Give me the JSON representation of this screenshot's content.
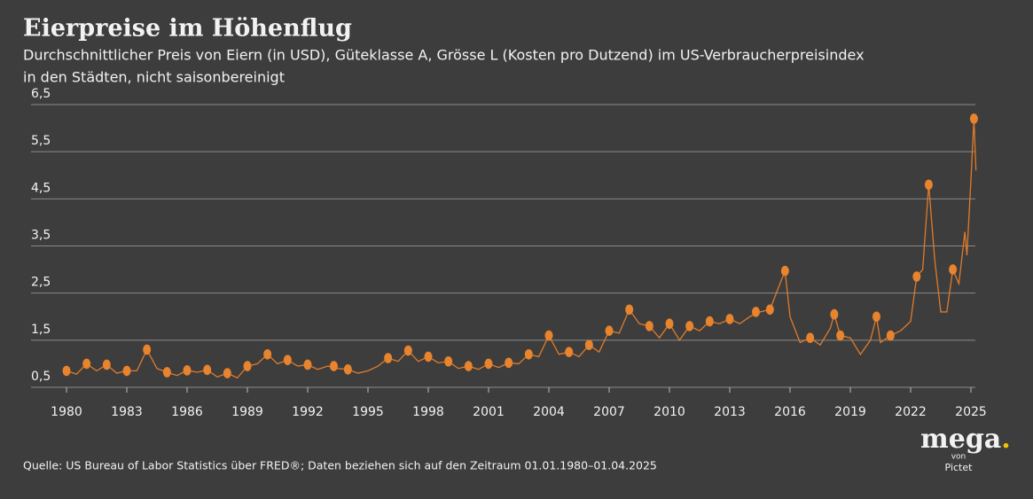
{
  "chart_data": {
    "type": "line",
    "title": "Eierpreise im Höhenflug",
    "subtitle": [
      "Durchschnittlicher Preis von Eiern (in USD), Güteklasse A, Grösse L (Kosten pro Dutzend) im US-Verbraucherpreisindex",
      "in den Städten, nicht saisonbereinigt"
    ],
    "source": "Quelle: US Bureau of Labor Statistics über FRED®; Daten beziehen sich auf den Zeitraum 01.01.1980–01.04.2025",
    "brand": {
      "name": "mega",
      "dot": ".",
      "by": "von",
      "company": "Pictet"
    },
    "xlim": [
      1980,
      2025
    ],
    "xticks": [
      1980,
      1983,
      1986,
      1989,
      1992,
      1995,
      1998,
      2001,
      2004,
      2007,
      2010,
      2013,
      2016,
      2019,
      2022,
      2025
    ],
    "ylim": [
      0.5,
      6.5
    ],
    "yticks": [
      {
        "value": 0.5,
        "label": "0,5"
      },
      {
        "value": 1.5,
        "label": "1,5"
      },
      {
        "value": 2.5,
        "label": "2,5"
      },
      {
        "value": 3.5,
        "label": "3,5"
      },
      {
        "value": 4.5,
        "label": "4,5"
      },
      {
        "value": 5.5,
        "label": "5,5"
      },
      {
        "value": 6.5,
        "label": "6,5"
      }
    ],
    "grid": true,
    "series": [
      {
        "color": "#e07b2a",
        "marker": "none",
        "x": [
          1980,
          1980.5,
          1981,
          1981.5,
          1982,
          1982.5,
          1983,
          1983.5,
          1984,
          1984.5,
          1985,
          1985.5,
          1986,
          1986.5,
          1987,
          1987.5,
          1988,
          1988.5,
          1989,
          1989.5,
          1990,
          1990.5,
          1991,
          1991.5,
          1992,
          1992.5,
          1993,
          1993.5,
          1994,
          1994.5,
          1995,
          1995.5,
          1996,
          1996.5,
          1997,
          1997.5,
          1998,
          1998.5,
          1999,
          1999.5,
          2000,
          2000.5,
          2001,
          2001.5,
          2002,
          2002.5,
          2003,
          2003.5,
          2004,
          2004.5,
          2005,
          2005.5,
          2006,
          2006.5,
          2007,
          2007.5,
          2008,
          2008.5,
          2009,
          2009.5,
          2010,
          2010.5,
          2011,
          2011.5,
          2012,
          2012.5,
          2013,
          2013.5,
          2014,
          2014.5,
          2015,
          2015.5,
          2015.75,
          2016,
          2016.5,
          2017,
          2017.5,
          2018,
          2018.2,
          2018.5,
          2019,
          2019.5,
          2020,
          2020.3,
          2020.5,
          2021,
          2021.5,
          2022,
          2022.3,
          2022.6,
          2022.9,
          2023.2,
          2023.5,
          2023.8,
          2024.1,
          2024.4,
          2024.7,
          2024.8,
          2025,
          2025.15,
          2025.25
        ],
        "values": [
          0.85,
          0.78,
          1.0,
          0.85,
          0.98,
          0.8,
          0.85,
          0.85,
          1.3,
          0.9,
          0.82,
          0.75,
          0.86,
          0.82,
          0.87,
          0.72,
          0.8,
          0.7,
          0.95,
          1.0,
          1.2,
          1.0,
          1.08,
          0.95,
          0.98,
          0.88,
          0.95,
          0.9,
          0.88,
          0.8,
          0.85,
          0.95,
          1.12,
          1.05,
          1.28,
          1.05,
          1.15,
          1.02,
          1.05,
          0.9,
          0.95,
          0.88,
          1.0,
          0.92,
          1.02,
          1.0,
          1.2,
          1.15,
          1.6,
          1.2,
          1.25,
          1.15,
          1.4,
          1.25,
          1.7,
          1.65,
          2.15,
          1.85,
          1.8,
          1.55,
          1.85,
          1.5,
          1.8,
          1.7,
          1.9,
          1.85,
          1.95,
          1.85,
          2.0,
          2.1,
          2.15,
          2.7,
          2.97,
          2.0,
          1.45,
          1.55,
          1.4,
          1.75,
          2.05,
          1.6,
          1.55,
          1.2,
          1.5,
          2.0,
          1.45,
          1.6,
          1.7,
          1.9,
          2.85,
          3.0,
          4.8,
          3.2,
          2.1,
          2.1,
          3.0,
          2.7,
          3.8,
          3.3,
          4.9,
          6.2,
          5.1
        ]
      },
      {
        "color": "#e8832e",
        "marker": "egg",
        "x": [
          1980,
          1981,
          1982,
          1983,
          1984,
          1985,
          1986,
          1987,
          1988,
          1989,
          1990,
          1991,
          1992,
          1993.3,
          1994,
          1996,
          1997,
          1998,
          1999,
          2000,
          2001,
          2002,
          2003,
          2004,
          2005,
          2006,
          2007,
          2008,
          2009,
          2010,
          2011,
          2012,
          2013,
          2014.3,
          2015,
          2015.75,
          2017,
          2018.2,
          2018.5,
          2020.3,
          2021,
          2022.3,
          2022.9,
          2024.1,
          2025.15
        ],
        "values": [
          0.85,
          1.0,
          0.98,
          0.85,
          1.3,
          0.82,
          0.86,
          0.87,
          0.8,
          0.95,
          1.2,
          1.08,
          0.98,
          0.95,
          0.88,
          1.12,
          1.28,
          1.15,
          1.05,
          0.95,
          1.0,
          1.02,
          1.2,
          1.6,
          1.25,
          1.4,
          1.7,
          2.15,
          1.8,
          1.85,
          1.8,
          1.9,
          1.95,
          2.1,
          2.15,
          2.97,
          1.55,
          2.05,
          1.6,
          2.0,
          1.6,
          2.85,
          4.8,
          3.0,
          6.2
        ]
      }
    ]
  }
}
